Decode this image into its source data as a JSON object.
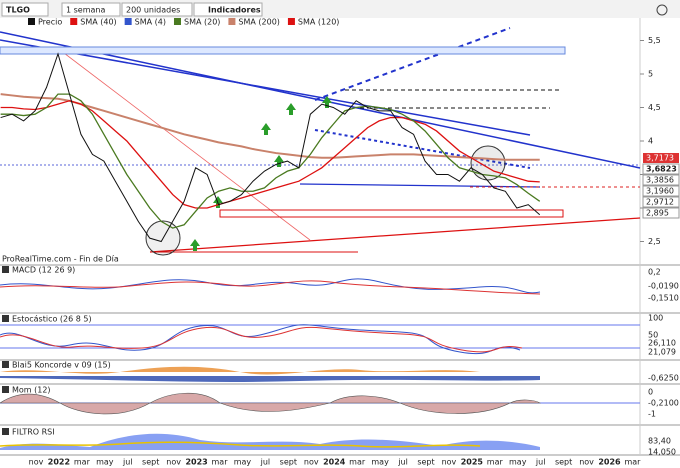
{
  "toolbar": {
    "symbol": "TLGO",
    "period": "1 semana",
    "units": "200 unidades",
    "indicators": "Indicadores"
  },
  "legend": [
    "Precio",
    "SMA (40)",
    "SMA (4)",
    "SMA (20)",
    "SMA (200)",
    "SMA (120)"
  ],
  "source": "ProRealTime.com - Fin de Día",
  "price_axis": [
    {
      "value": 5.5,
      "label": "5,5"
    },
    5,
    {
      "value": 4.5,
      "label": "4,5"
    },
    4,
    {
      "value": 3.5,
      "label": "3,5"
    },
    3,
    {
      "value": 2.5,
      "label": "2,5"
    }
  ],
  "price_labels": [
    {
      "value": 3.7173,
      "label": "3,7173"
    },
    {
      "value": 3.6823,
      "label": "3,6823"
    },
    {
      "value": 3.3856,
      "label": "3,3856"
    },
    {
      "value": 3.196,
      "label": "3,1960"
    },
    {
      "value": 2.9712,
      "label": "2,9712"
    },
    {
      "value": 2.895,
      "label": "2,895"
    }
  ],
  "price": [
    4.35,
    4.4,
    4.3,
    4.45,
    4.8,
    5.3,
    4.7,
    4.1,
    3.8,
    3.7,
    3.4,
    3.1,
    2.8,
    2.55,
    2.5,
    2.8,
    3.1,
    3.6,
    3.5,
    3.05,
    3.1,
    3.2,
    3.4,
    3.55,
    3.65,
    3.7,
    3.6,
    4.4,
    4.55,
    4.5,
    4.4,
    4.6,
    4.5,
    4.45,
    4.45,
    4.2,
    4.1,
    3.7,
    3.5,
    3.5,
    3.4,
    3.6,
    3.5,
    3.3,
    3.25,
    3.0,
    3.05,
    2.9
  ],
  "sma20": [
    4.4,
    4.4,
    4.38,
    4.4,
    4.5,
    4.7,
    4.7,
    4.6,
    4.4,
    4.1,
    3.8,
    3.5,
    3.25,
    3.0,
    2.8,
    2.7,
    2.75,
    2.95,
    3.15,
    3.25,
    3.3,
    3.25,
    3.25,
    3.3,
    3.45,
    3.55,
    3.6,
    3.8,
    4.05,
    4.25,
    4.45,
    4.5,
    4.52,
    4.5,
    4.47,
    4.4,
    4.3,
    4.15,
    3.95,
    3.75,
    3.6,
    3.55,
    3.5,
    3.48,
    3.45,
    3.35,
    3.22,
    3.1
  ],
  "sma40": [
    4.5,
    4.5,
    4.48,
    4.47,
    4.5,
    4.55,
    4.6,
    4.55,
    4.45,
    4.3,
    4.15,
    4.0,
    3.8,
    3.6,
    3.4,
    3.2,
    3.05,
    3.0,
    3.0,
    3.05,
    3.1,
    3.15,
    3.2,
    3.25,
    3.3,
    3.35,
    3.4,
    3.5,
    3.6,
    3.75,
    3.9,
    4.05,
    4.2,
    4.3,
    4.35,
    4.35,
    4.3,
    4.25,
    4.15,
    4.0,
    3.85,
    3.75,
    3.65,
    3.55,
    3.5,
    3.45,
    3.4,
    3.39
  ],
  "sma200": [
    4.7,
    4.68,
    4.66,
    4.65,
    4.64,
    4.63,
    4.6,
    4.55,
    4.5,
    4.45,
    4.4,
    4.35,
    4.3,
    4.25,
    4.2,
    4.15,
    4.1,
    4.06,
    4.02,
    3.98,
    3.95,
    3.92,
    3.88,
    3.85,
    3.82,
    3.8,
    3.78,
    3.76,
    3.75,
    3.75,
    3.76,
    3.77,
    3.78,
    3.79,
    3.8,
    3.8,
    3.8,
    3.79,
    3.78,
    3.77,
    3.76,
    3.75,
    3.74,
    3.73,
    3.72,
    3.72,
    3.72,
    3.72
  ],
  "panels": [
    {
      "title": "MACD (12 26 9)",
      "labels": [
        "0,2",
        "-0,0190",
        "-0,1510"
      ]
    },
    {
      "title": "Estocástico (26 8 5)",
      "labels": [
        "100",
        "50",
        "26,110",
        "21,079"
      ]
    },
    {
      "title": "Blai5 Koncorde v 09 (15)",
      "labels": [
        "-0,6250"
      ]
    },
    {
      "title": "Mom (12)",
      "labels": [
        "0",
        "-0,2100",
        "-1"
      ]
    },
    {
      "title": "FILTRO RSI",
      "labels": [
        "83,40",
        "14,050"
      ]
    }
  ],
  "months": [
    "nov",
    "2022",
    "mar",
    "may",
    "jul",
    "sept",
    "nov",
    "2023",
    "mar",
    "may",
    "jul",
    "sept",
    "nov",
    "2024",
    "mar",
    "may",
    "jul",
    "sept",
    "nov",
    "2025",
    "mar",
    "may",
    "jul",
    "sept",
    "nov",
    "2026",
    "mar"
  ]
}
